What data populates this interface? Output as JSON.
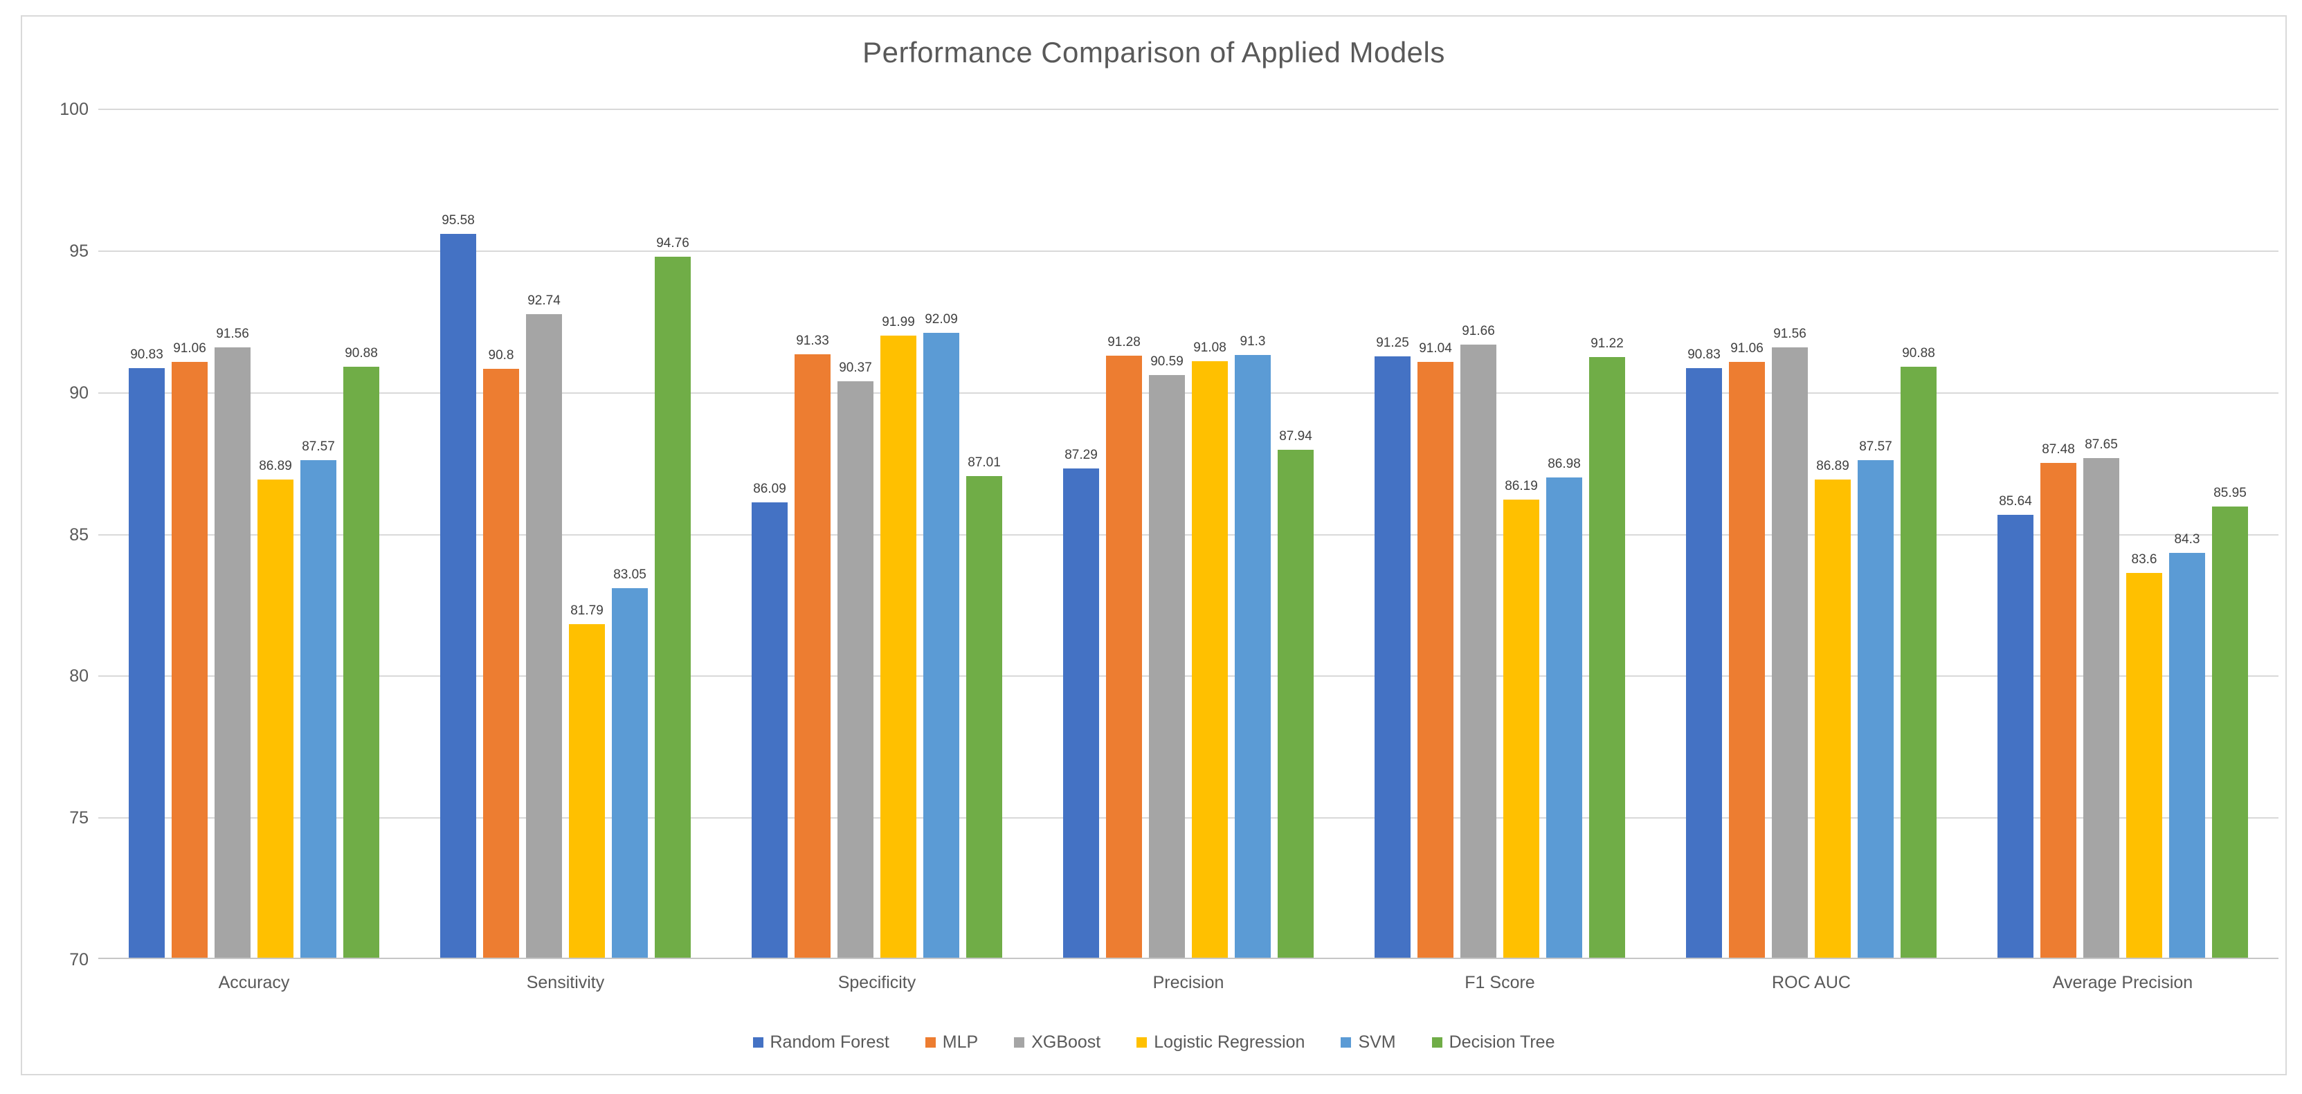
{
  "chart_data": {
    "type": "bar",
    "title": "Performance Comparison of Applied Models",
    "categories": [
      "Accuracy",
      "Sensitivity",
      "Specificity",
      "Precision",
      "F1 Score",
      "ROC AUC",
      "Average Precision"
    ],
    "series": [
      {
        "name": "Random Forest",
        "color": "#4472C4",
        "values": [
          90.83,
          95.58,
          86.09,
          87.29,
          91.25,
          90.83,
          85.64
        ]
      },
      {
        "name": "MLP",
        "color": "#ED7D31",
        "values": [
          91.06,
          90.8,
          91.33,
          91.28,
          91.04,
          91.06,
          87.48
        ]
      },
      {
        "name": "XGBoost",
        "color": "#A5A5A5",
        "values": [
          91.56,
          92.74,
          90.37,
          90.59,
          91.66,
          91.56,
          87.65
        ]
      },
      {
        "name": "Logistic Regression",
        "color": "#FFC000",
        "values": [
          86.89,
          81.79,
          91.99,
          91.08,
          86.19,
          86.89,
          83.6
        ]
      },
      {
        "name": "SVM",
        "color": "#5B9BD5",
        "values": [
          87.57,
          83.05,
          92.09,
          91.3,
          86.98,
          87.57,
          84.3
        ]
      },
      {
        "name": "Decision Tree",
        "color": "#70AD47",
        "values": [
          90.88,
          94.76,
          87.01,
          87.94,
          91.22,
          90.88,
          85.95
        ]
      }
    ],
    "ylim": [
      70,
      100
    ],
    "yticks": [
      100,
      95,
      90,
      85,
      80,
      75,
      70
    ],
    "grid": true,
    "legend_position": "bottom",
    "value_labels": "outside-end"
  },
  "colors": {
    "title_text": "#595959",
    "axis_text": "#595959",
    "data_label_text": "#404040",
    "gridline": "#D9D9D9",
    "axis_line": "#C6C6C6",
    "frame_border": "#D9D9D9",
    "background": "#FFFFFF"
  }
}
